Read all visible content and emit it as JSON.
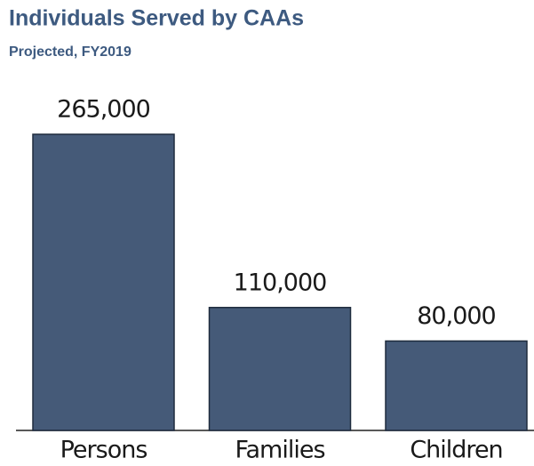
{
  "chart_data": {
    "type": "bar",
    "title": "Individuals Served by CAAs",
    "subtitle": "Projected, FY2019",
    "categories": [
      "Persons",
      "Families",
      "Children"
    ],
    "values": [
      265000,
      110000,
      80000
    ],
    "value_labels": [
      "265,000",
      "110,000",
      "80,000"
    ],
    "color": "#455a78"
  }
}
